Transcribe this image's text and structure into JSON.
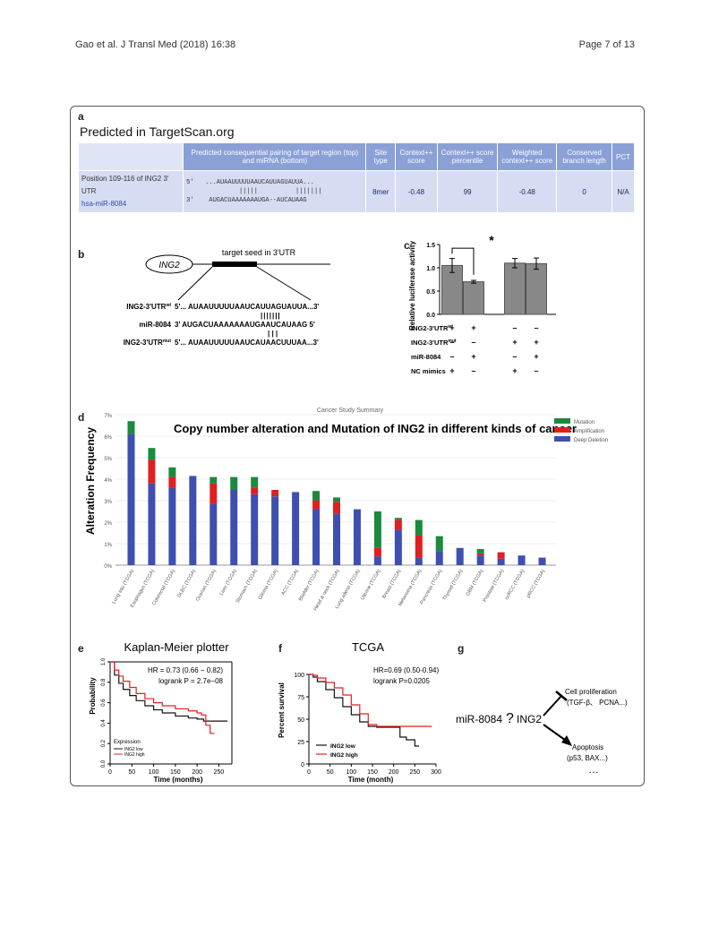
{
  "header": {
    "citation": "Gao et al. J Transl Med (2018) 16:38",
    "page": "Page 7 of 13"
  },
  "panels": {
    "a": "a",
    "b": "b",
    "c": "c",
    "d": "d",
    "e": "e",
    "f": "f",
    "g": "g"
  },
  "panel_a": {
    "title": "Predicted in TargetScan.org",
    "columns": [
      "",
      "Predicted consequential pairing of target region (top) and miRNA (bottom)",
      "Site type",
      "Context++ score",
      "Context++ score percentile",
      "Weighted context++ score",
      "Conserved branch length",
      "PCT"
    ],
    "row": {
      "position": "Position 109-116 of ING2 3' UTR",
      "mirna": "hsa-miR-8084",
      "seq_top": "5'   ...AUAAUUUUUAAUCAUUAGUAUUA...",
      "seq_mid": "              |||||          |||||||",
      "seq_bot": "3'    AUGACUAAAAAAAUGA--AUCAUAAG",
      "site_type": "8mer",
      "context_score": "-0.48",
      "percentile": "99",
      "weighted": "-0.48",
      "branch_length": "0",
      "pct": "N/A"
    }
  },
  "panel_b": {
    "gene": "ING2",
    "seed_label": "target seed in 3'UTR",
    "rows": [
      {
        "label": "ING2-3'UTR",
        "sup": "wt",
        "seq": "5'... AUAAUUUUUAAUCAUUAGUAUUA...3'"
      },
      {
        "label": "miR-8084",
        "sup": "",
        "seq": "3'   AUGACUAAAAAAAUGAAUCAUAAG   5'"
      },
      {
        "label": "ING2-3'UTR",
        "sup": "mut",
        "seq": "5'... AUAAUUUUUAAUCAUAACUUUAA...3'"
      }
    ],
    "bars_top": "|||||||",
    "bars_bot": "|  |  |"
  },
  "panel_c": {
    "ylabel": "Relative luciferase activity",
    "yticks": [
      "0.0",
      "0.5",
      "1.0",
      "1.5"
    ],
    "star": "*",
    "row_labels": [
      {
        "label": "ING2-3'UTR",
        "sup": "wt",
        "marks": [
          "+",
          "+",
          "–",
          "–"
        ]
      },
      {
        "label": "ING2-3'UTR",
        "sup": "mut",
        "marks": [
          "–",
          "–",
          "+",
          "+"
        ]
      },
      {
        "label": "miR-8084",
        "sup": "",
        "marks": [
          "–",
          "+",
          "–",
          "+"
        ]
      },
      {
        "label": "NC mimics",
        "sup": "",
        "marks": [
          "+",
          "–",
          "+",
          "–"
        ]
      }
    ]
  },
  "panel_d": {
    "summary": "Cancer Study Summary",
    "title": "Copy number alteration and Mutation of ING2 in different kinds of cancer",
    "ylabel": "Alteration Frequency",
    "yticks": [
      "0%",
      "1%",
      "2%",
      "3%",
      "4%",
      "5%",
      "6%",
      "7%"
    ],
    "legend": [
      "Mutation",
      "Amplification",
      "Deep Deletion"
    ]
  },
  "panel_e": {
    "title": "Kaplan-Meier plotter",
    "hr": "HR = 0.73 (0.66 − 0.82)",
    "logrank": "logrank P = 2.7e−08",
    "ylabel": "Probability",
    "xlabel": "Time (months)",
    "yticks": [
      "0.0",
      "0.2",
      "0.4",
      "0.6",
      "0.8",
      "1.0"
    ],
    "xticks": [
      "0",
      "50",
      "100",
      "150",
      "200",
      "250"
    ],
    "legend_title": "Expression",
    "legend": [
      "ING2 low",
      "ING2 high"
    ]
  },
  "panel_f": {
    "title": "TCGA",
    "hr": "HR=0.69 (0.50-0.94)",
    "logrank": "logrank P=0.0205",
    "ylabel": "Percent survival",
    "xlabel": "Time (month)",
    "yticks": [
      "0",
      "25",
      "50",
      "75",
      "100"
    ],
    "xticks": [
      "0",
      "50",
      "100",
      "150",
      "200",
      "250",
      "300"
    ],
    "legend": [
      "ING2 low",
      "ING2 high"
    ]
  },
  "panel_g": {
    "mirna": "miR-8084",
    "question": "?",
    "gene": "ING2",
    "inhibit_label": "Cell proliferation",
    "inhibit_detail": "(TGF-β、 PCNA...)",
    "promote_label": "Apoptosis",
    "promote_detail": "(p53, BAX...)",
    "ellipsis": "…"
  },
  "colors": {
    "mutation": "#1a8a3f",
    "amplification": "#e02020",
    "deletion": "#3f4fb0",
    "table_header": "#8aa0d6",
    "table_row": "#d6ddf2",
    "bar_gray": "#888888",
    "ing2_low": "#111111",
    "ing2_high": "#e02020"
  },
  "chart_data": [
    {
      "type": "bar",
      "panel": "c",
      "groups": [
        {
          "name": "wt + NC mimics",
          "value": 1.05,
          "err": 0.15
        },
        {
          "name": "wt + miR-8084",
          "value": 0.7,
          "err": 0.03
        },
        {
          "name": "mut + NC mimics",
          "value": 1.1,
          "err": 0.1
        },
        {
          "name": "mut + miR-8084",
          "value": 1.09,
          "err": 0.12
        }
      ],
      "ylim": [
        0,
        1.5
      ]
    },
    {
      "type": "bar",
      "panel": "d",
      "stacked": true,
      "categories": [
        "Lung squ (TCGA)",
        "Esophagus (TCGA)",
        "Colorectal (TCGA)",
        "DLBC (TCGA)",
        "Ovarian (TCGA)",
        "Liver (TCGA)",
        "Stomach (TCGA)",
        "Glioma (TCGA)",
        "ACC (TCGA)",
        "Bladder (TCGA)",
        "Head & neck (TCGA)",
        "Lung adeno (TCGA)",
        "Uterine (TCGA)",
        "Breast (TCGA)",
        "Melanoma (TCGA)",
        "Pancreas (TCGA)",
        "Thyroid (TCGA)",
        "GBM (TCGA)",
        "Prostate (TCGA)",
        "ccRCC (TCGA)",
        "pRCC (TCGA)"
      ],
      "series": [
        {
          "name": "Deep Deletion",
          "values": [
            6.1,
            3.8,
            3.6,
            4.15,
            2.85,
            3.5,
            3.3,
            3.2,
            3.4,
            2.6,
            2.4,
            2.6,
            0.4,
            1.65,
            0.35,
            0.65,
            0.8,
            0.45,
            0.3,
            0.45,
            0.35
          ]
        },
        {
          "name": "Amplification",
          "values": [
            0,
            1.1,
            0.5,
            0,
            0.95,
            0,
            0.3,
            0.3,
            0,
            0.4,
            0.55,
            0,
            0.4,
            0.45,
            1.05,
            0,
            0,
            0.1,
            0.3,
            0,
            0
          ]
        },
        {
          "name": "Mutation",
          "values": [
            0.6,
            0.55,
            0.45,
            0,
            0.3,
            0.6,
            0.5,
            0,
            0,
            0.45,
            0.2,
            0,
            1.7,
            0.1,
            0.7,
            0.7,
            0,
            0.2,
            0,
            0,
            0
          ]
        }
      ],
      "ylim": [
        0,
        7
      ]
    },
    {
      "type": "line",
      "panel": "e",
      "xlim": [
        0,
        280
      ],
      "ylim": [
        0,
        1
      ],
      "series": [
        {
          "name": "ING2 low",
          "x": [
            0,
            10,
            20,
            30,
            45,
            60,
            80,
            100,
            120,
            150,
            180,
            200,
            215,
            230,
            250,
            270
          ],
          "y": [
            1.0,
            0.87,
            0.79,
            0.73,
            0.67,
            0.62,
            0.57,
            0.53,
            0.5,
            0.47,
            0.45,
            0.44,
            0.42,
            0.42,
            0.42,
            0.42
          ]
        },
        {
          "name": "ING2 high",
          "x": [
            0,
            10,
            20,
            30,
            45,
            60,
            80,
            100,
            120,
            150,
            180,
            200,
            210,
            220,
            230,
            240
          ],
          "y": [
            1.0,
            0.92,
            0.86,
            0.81,
            0.75,
            0.69,
            0.64,
            0.6,
            0.57,
            0.54,
            0.52,
            0.5,
            0.48,
            0.38,
            0.3,
            0.3
          ]
        }
      ]
    },
    {
      "type": "line",
      "panel": "f",
      "xlim": [
        0,
        300
      ],
      "ylim": [
        0,
        100
      ],
      "series": [
        {
          "name": "ING2 low",
          "x": [
            0,
            10,
            20,
            40,
            60,
            80,
            100,
            120,
            140,
            160,
            180,
            200,
            215,
            230,
            240,
            250,
            260
          ],
          "y": [
            100,
            97,
            92,
            83,
            74,
            64,
            55,
            47,
            42,
            41,
            41,
            41,
            30,
            27,
            27,
            20,
            20
          ]
        },
        {
          "name": "ING2 high",
          "x": [
            0,
            10,
            20,
            40,
            60,
            80,
            100,
            120,
            140,
            160,
            180,
            200,
            230,
            260,
            290
          ],
          "y": [
            100,
            99,
            96,
            91,
            85,
            77,
            66,
            56,
            44,
            42,
            42,
            42,
            42,
            42,
            42
          ]
        }
      ]
    }
  ]
}
